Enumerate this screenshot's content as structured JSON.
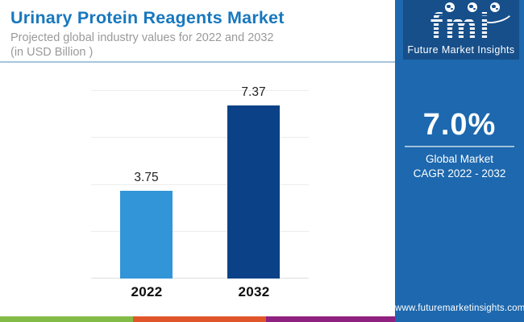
{
  "header": {
    "title": "Urinary Protein Reagents Market",
    "subtitle_line1": "Projected global industry values for 2022 and 2032",
    "subtitle_line2": "(in USD Billion )"
  },
  "chart_data": {
    "type": "bar",
    "title": "Urinary Protein Reagents Market",
    "subtitle": "Projected global industry values for 2022 and 2032 (in USD Billion)",
    "categories": [
      "2022",
      "2032"
    ],
    "values": [
      3.75,
      7.37
    ],
    "value_labels": [
      "3.75",
      "7.37"
    ],
    "bar_colors": [
      "#3295D8",
      "#0B4287"
    ],
    "xlabel": "",
    "ylabel": "USD Billion",
    "ylim": [
      0,
      8
    ],
    "gridline_values": [
      0,
      2,
      4,
      6,
      8
    ],
    "grid": true,
    "legend": false
  },
  "panel": {
    "background": "#1D68AE",
    "logo": {
      "brand": "fmi",
      "caption": "Future Market Insights"
    },
    "cagr": {
      "value": "7.0%",
      "line1": "Global Market",
      "line2": "CAGR 2022 - 2032"
    },
    "website": "www.futuremarketinsights.com"
  },
  "footer": {
    "stripe_colors": [
      "#82BC46",
      "#E0562A",
      "#8F2180"
    ]
  },
  "colors": {
    "title_blue": "#1878BE",
    "subtitle_gray": "#9A9A9A",
    "panel_blue": "#1D68AE",
    "logo_box_blue": "#174F8A",
    "grid_gray": "#ECECEC",
    "bar_2022": "#3295D8",
    "bar_2032": "#0B4287"
  }
}
